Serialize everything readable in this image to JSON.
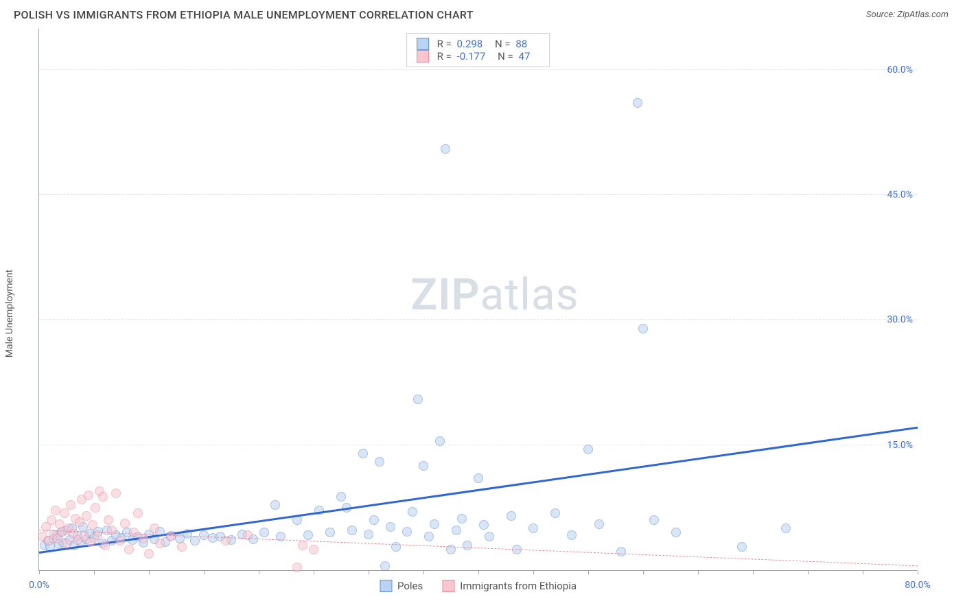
{
  "title": "POLISH VS IMMIGRANTS FROM ETHIOPIA MALE UNEMPLOYMENT CORRELATION CHART",
  "source": "Source: ZipAtlas.com",
  "ylabel": "Male Unemployment",
  "watermark_zip": "ZIP",
  "watermark_atlas": "atlas",
  "chart": {
    "type": "scatter",
    "xlim": [
      0,
      80
    ],
    "ylim": [
      0,
      65
    ],
    "x_tick_start_label": "0.0%",
    "x_tick_end_label": "80.0%",
    "x_minor_ticks": [
      0,
      5,
      10,
      15,
      20,
      25,
      30,
      35,
      40,
      45,
      50,
      55,
      60,
      65,
      70,
      75,
      80
    ],
    "y_ticks": [
      15,
      30,
      45,
      60
    ],
    "y_tick_labels": [
      "15.0%",
      "30.0%",
      "45.0%",
      "60.0%"
    ],
    "grid_color": "#e6e6e6",
    "axis_color": "#9aa3ad",
    "tick_label_color": "#3b6fd6",
    "background_color": "#ffffff",
    "marker_radius": 7,
    "marker_opacity": 0.55,
    "series": [
      {
        "name": "Poles",
        "color_fill": "#b9d3f3",
        "color_stroke": "#5e8fd8",
        "R": 0.298,
        "N": 88,
        "trend": {
          "x1": 0,
          "y1": 2.0,
          "x2": 80,
          "y2": 17.0,
          "color": "#2f66d4",
          "width": 3,
          "dash": "solid"
        },
        "points": [
          [
            0.5,
            3.0
          ],
          [
            0.8,
            3.5
          ],
          [
            1.0,
            2.8
          ],
          [
            1.3,
            3.8
          ],
          [
            1.6,
            4.2
          ],
          [
            1.8,
            3.1
          ],
          [
            2.0,
            4.5
          ],
          [
            2.2,
            3.3
          ],
          [
            2.5,
            4.8
          ],
          [
            2.8,
            3.6
          ],
          [
            3.0,
            5.0
          ],
          [
            3.2,
            3.0
          ],
          [
            3.5,
            4.1
          ],
          [
            3.8,
            3.4
          ],
          [
            4.0,
            5.2
          ],
          [
            4.3,
            3.7
          ],
          [
            4.6,
            4.4
          ],
          [
            5.0,
            3.9
          ],
          [
            5.4,
            4.6
          ],
          [
            5.8,
            3.2
          ],
          [
            6.2,
            4.8
          ],
          [
            6.6,
            3.5
          ],
          [
            7.0,
            4.2
          ],
          [
            7.5,
            3.8
          ],
          [
            8.0,
            4.5
          ],
          [
            8.5,
            3.6
          ],
          [
            9.0,
            4.0
          ],
          [
            9.5,
            3.3
          ],
          [
            10.0,
            4.3
          ],
          [
            10.5,
            3.7
          ],
          [
            11.0,
            4.6
          ],
          [
            11.5,
            3.4
          ],
          [
            12.0,
            4.1
          ],
          [
            12.8,
            3.8
          ],
          [
            13.5,
            4.4
          ],
          [
            14.2,
            3.5
          ],
          [
            15.0,
            4.2
          ],
          [
            15.8,
            3.9
          ],
          [
            16.5,
            4.0
          ],
          [
            17.5,
            3.6
          ],
          [
            18.5,
            4.3
          ],
          [
            19.5,
            3.7
          ],
          [
            20.5,
            4.5
          ],
          [
            21.5,
            7.8
          ],
          [
            22.0,
            4.0
          ],
          [
            23.5,
            6.0
          ],
          [
            24.5,
            4.2
          ],
          [
            25.5,
            7.2
          ],
          [
            26.5,
            4.5
          ],
          [
            27.5,
            8.8
          ],
          [
            28.0,
            7.5
          ],
          [
            28.5,
            4.8
          ],
          [
            29.5,
            14.0
          ],
          [
            30.0,
            4.3
          ],
          [
            30.5,
            6.0
          ],
          [
            31.0,
            13.0
          ],
          [
            31.5,
            0.5
          ],
          [
            32.0,
            5.2
          ],
          [
            32.5,
            2.8
          ],
          [
            33.5,
            4.6
          ],
          [
            34.0,
            7.0
          ],
          [
            34.5,
            20.5
          ],
          [
            35.0,
            12.5
          ],
          [
            35.5,
            4.0
          ],
          [
            36.0,
            5.5
          ],
          [
            36.5,
            15.5
          ],
          [
            37.0,
            50.5
          ],
          [
            37.5,
            2.5
          ],
          [
            38.0,
            4.8
          ],
          [
            38.5,
            6.2
          ],
          [
            39.0,
            3.0
          ],
          [
            40.0,
            11.0
          ],
          [
            40.5,
            5.4
          ],
          [
            41.0,
            4.0
          ],
          [
            43.0,
            6.5
          ],
          [
            43.5,
            2.5
          ],
          [
            45.0,
            5.0
          ],
          [
            47.0,
            6.8
          ],
          [
            48.5,
            4.2
          ],
          [
            50.0,
            14.5
          ],
          [
            51.0,
            5.5
          ],
          [
            53.0,
            2.2
          ],
          [
            54.5,
            56.0
          ],
          [
            55.0,
            29.0
          ],
          [
            56.0,
            6.0
          ],
          [
            58.0,
            4.5
          ],
          [
            64.0,
            2.8
          ],
          [
            68.0,
            5.0
          ]
        ]
      },
      {
        "name": "Immigrants from Ethiopia",
        "color_fill": "#f7c6cf",
        "color_stroke": "#e68a9b",
        "R": -0.177,
        "N": 47,
        "trend": {
          "x1": 0,
          "y1": 4.8,
          "x2": 80,
          "y2": 0.5,
          "color": "#e68a9b",
          "width": 1.5,
          "dash": "dashed"
        },
        "points": [
          [
            0.3,
            4.0
          ],
          [
            0.6,
            5.2
          ],
          [
            0.9,
            3.5
          ],
          [
            1.1,
            6.0
          ],
          [
            1.3,
            4.3
          ],
          [
            1.5,
            7.2
          ],
          [
            1.7,
            3.8
          ],
          [
            1.9,
            5.5
          ],
          [
            2.1,
            4.6
          ],
          [
            2.3,
            6.8
          ],
          [
            2.5,
            3.2
          ],
          [
            2.7,
            5.0
          ],
          [
            2.9,
            7.8
          ],
          [
            3.1,
            4.4
          ],
          [
            3.3,
            6.2
          ],
          [
            3.5,
            3.6
          ],
          [
            3.7,
            5.8
          ],
          [
            3.9,
            8.5
          ],
          [
            4.1,
            4.0
          ],
          [
            4.3,
            6.5
          ],
          [
            4.5,
            9.0
          ],
          [
            4.7,
            3.4
          ],
          [
            4.9,
            5.4
          ],
          [
            5.1,
            7.5
          ],
          [
            5.3,
            4.2
          ],
          [
            5.5,
            9.5
          ],
          [
            5.8,
            8.8
          ],
          [
            6.0,
            3.0
          ],
          [
            6.3,
            6.0
          ],
          [
            6.6,
            4.8
          ],
          [
            7.0,
            9.2
          ],
          [
            7.4,
            3.5
          ],
          [
            7.8,
            5.6
          ],
          [
            8.2,
            2.5
          ],
          [
            8.6,
            4.5
          ],
          [
            9.0,
            6.8
          ],
          [
            9.5,
            3.8
          ],
          [
            10.0,
            2.0
          ],
          [
            10.5,
            5.0
          ],
          [
            11.0,
            3.2
          ],
          [
            12.0,
            4.0
          ],
          [
            13.0,
            2.8
          ],
          [
            17.0,
            3.5
          ],
          [
            19.0,
            4.2
          ],
          [
            23.5,
            0.3
          ],
          [
            24.0,
            3.0
          ],
          [
            25.0,
            2.5
          ]
        ]
      }
    ]
  },
  "stats_box": {
    "rows": [
      {
        "swatch_fill": "#b9d3f3",
        "swatch_stroke": "#5e8fd8",
        "R": "0.298",
        "N": "88"
      },
      {
        "swatch_fill": "#f7c6cf",
        "swatch_stroke": "#e68a9b",
        "R": "-0.177",
        "N": "47"
      }
    ],
    "label_R": "R =",
    "label_N": "N ="
  },
  "legend": {
    "items": [
      {
        "label": "Poles",
        "fill": "#b9d3f3",
        "stroke": "#5e8fd8"
      },
      {
        "label": "Immigrants from Ethiopia",
        "fill": "#f7c6cf",
        "stroke": "#e68a9b"
      }
    ]
  }
}
